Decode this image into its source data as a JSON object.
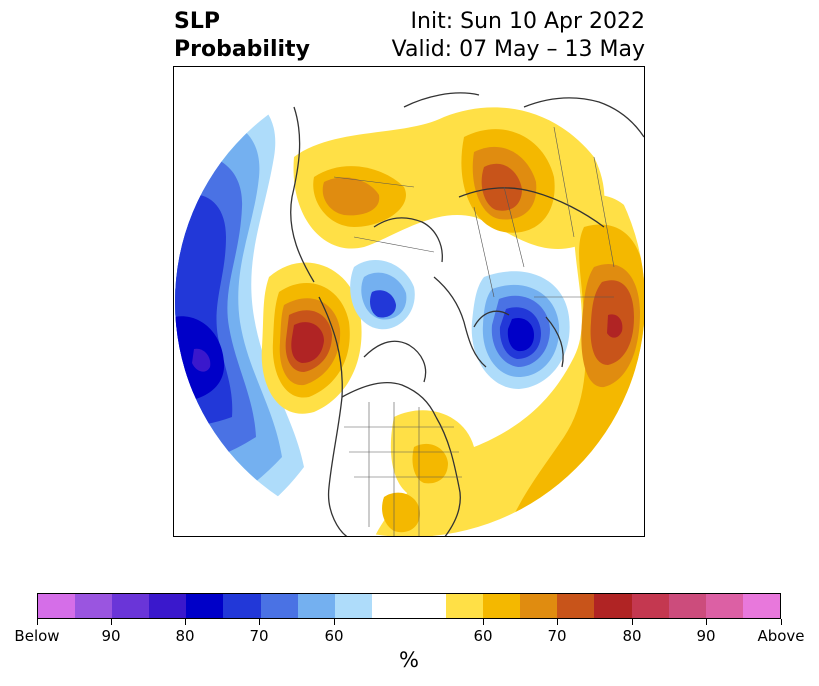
{
  "header": {
    "title_line1": "SLP",
    "title_line2": "Probability",
    "init_text": "Init: Sun 10 Apr 2022",
    "valid_text": "Valid: 07 May – 13 May"
  },
  "map": {
    "projection": "north-polar-stereographic",
    "features": [
      "coastlines",
      "country-borders",
      "us-state-borders"
    ]
  },
  "colorbar": {
    "unit": "%",
    "swatches": [
      {
        "color": "#d56ee8"
      },
      {
        "color": "#9a55e0"
      },
      {
        "color": "#6a35d8"
      },
      {
        "color": "#3a18cc"
      },
      {
        "color": "#0000c8"
      },
      {
        "color": "#2238d8"
      },
      {
        "color": "#4a72e4"
      },
      {
        "color": "#74b0f0"
      },
      {
        "color": "#aedcfa"
      },
      {
        "color": "#ffffff",
        "wide": true
      },
      {
        "color": "#ffe046"
      },
      {
        "color": "#f4b800"
      },
      {
        "color": "#e08c10"
      },
      {
        "color": "#c8541a"
      },
      {
        "color": "#b02424"
      },
      {
        "color": "#c43850"
      },
      {
        "color": "#cc4c7c"
      },
      {
        "color": "#dc60a4"
      },
      {
        "color": "#e878dc"
      }
    ],
    "tick_labels": [
      "Below",
      "90",
      "80",
      "70",
      "60",
      "60",
      "70",
      "80",
      "90",
      "Above"
    ]
  }
}
